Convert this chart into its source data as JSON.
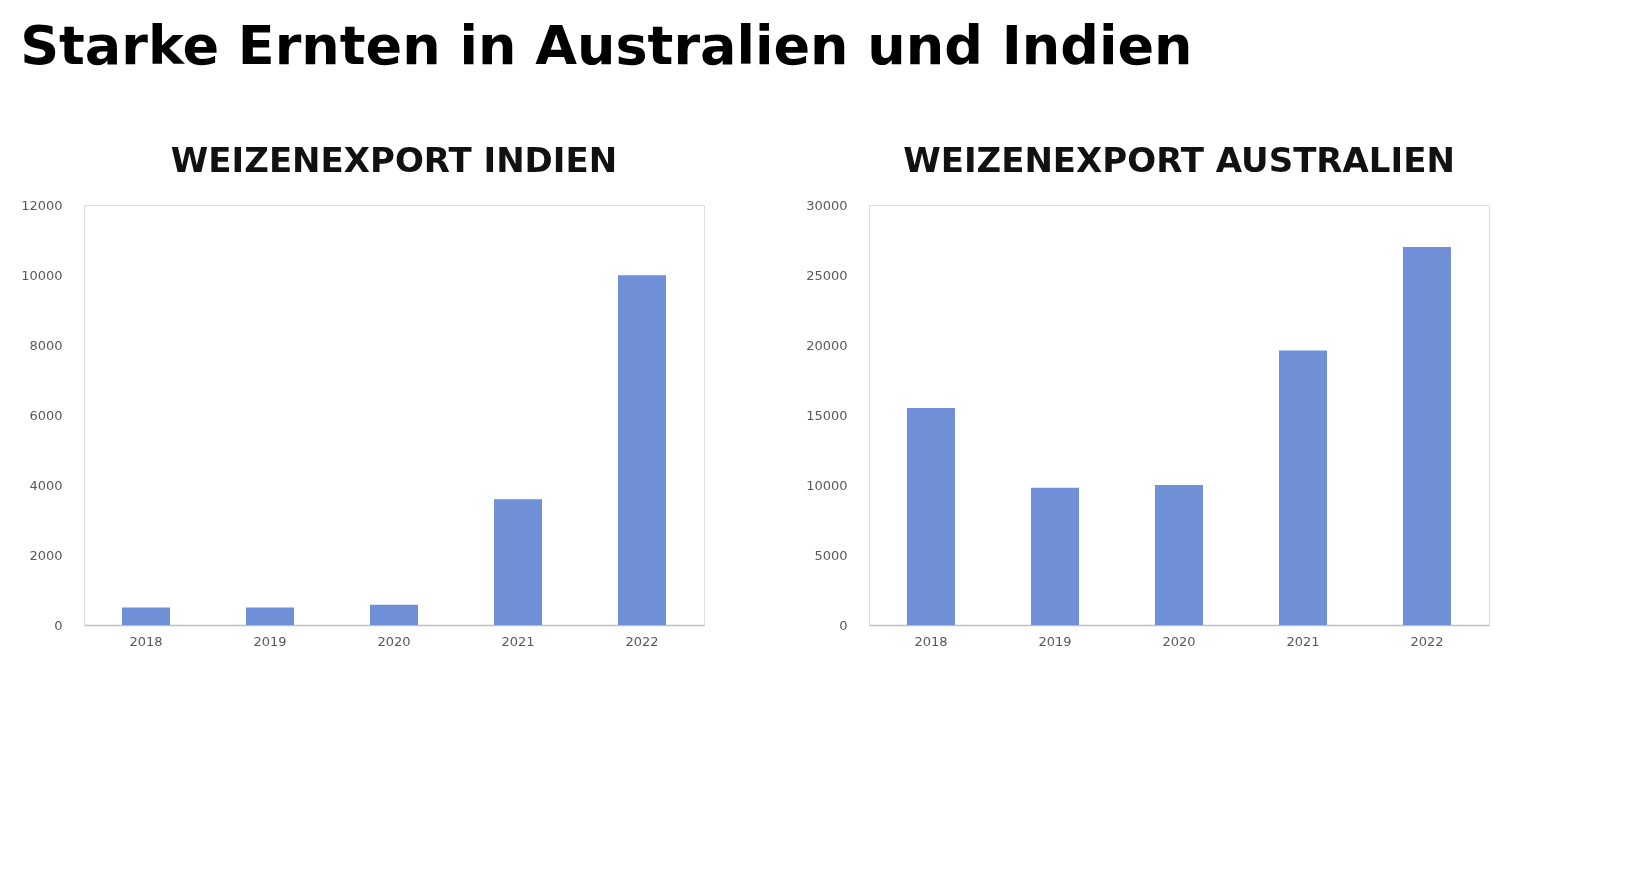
{
  "chart_data": [
    {
      "type": "bar",
      "title": "WEIZENEXPORT INDIEN",
      "annotations": [
        "Starke Ernten in Australien und Indien"
      ],
      "categories": [
        "2018",
        "2019",
        "2020",
        "2021",
        "2022"
      ],
      "values": [
        500,
        500,
        580,
        3590,
        9990
      ],
      "color": "#6f8fd6",
      "ylim": [
        0,
        12000
      ],
      "yticks": [
        0,
        2000,
        4000,
        6000,
        8000,
        10000,
        12000
      ],
      "grid": false,
      "legend": false
    },
    {
      "type": "bar",
      "title": "WEIZENEXPORT AUSTRALIEN",
      "categories": [
        "2018",
        "2019",
        "2020",
        "2021",
        "2022"
      ],
      "values": [
        15500,
        9800,
        10000,
        19600,
        27000
      ],
      "color": "#6f8fd6",
      "ylim": [
        0,
        30000
      ],
      "yticks": [
        0,
        5000,
        10000,
        15000,
        20000,
        25000,
        30000
      ],
      "grid": false,
      "legend": false
    }
  ]
}
